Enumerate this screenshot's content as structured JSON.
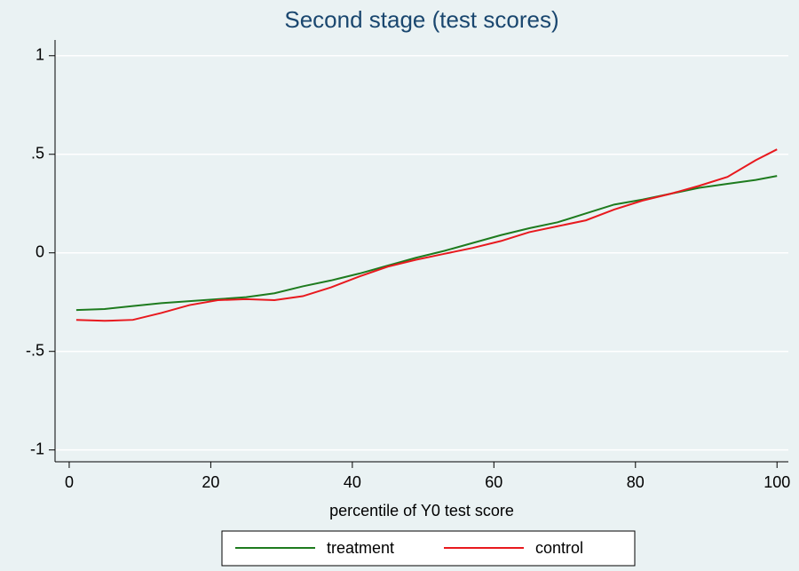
{
  "chart_data": {
    "type": "line",
    "title": "Second stage (test scores)",
    "xlabel": "percentile of Y0 test score",
    "x": [
      1,
      5,
      9,
      13,
      17,
      21,
      25,
      29,
      33,
      37,
      41,
      45,
      49,
      53,
      57,
      61,
      65,
      69,
      73,
      77,
      81,
      85,
      89,
      93,
      97,
      100
    ],
    "series": [
      {
        "name": "treatment",
        "color": "#1e7b1e",
        "values": [
          -0.29,
          -0.285,
          -0.27,
          -0.255,
          -0.245,
          -0.235,
          -0.225,
          -0.205,
          -0.17,
          -0.14,
          -0.105,
          -0.065,
          -0.025,
          0.01,
          0.05,
          0.09,
          0.125,
          0.155,
          0.2,
          0.245,
          0.27,
          0.3,
          0.33,
          0.35,
          0.37,
          0.39
        ]
      },
      {
        "name": "control",
        "color": "#e8191e",
        "values": [
          -0.34,
          -0.345,
          -0.34,
          -0.305,
          -0.265,
          -0.24,
          -0.235,
          -0.24,
          -0.22,
          -0.175,
          -0.12,
          -0.07,
          -0.035,
          -0.005,
          0.025,
          0.06,
          0.105,
          0.135,
          0.165,
          0.22,
          0.265,
          0.3,
          0.34,
          0.385,
          0.47,
          0.525
        ]
      }
    ],
    "xlim": [
      -2,
      101.6
    ],
    "ylim": [
      -1.06,
      1.08
    ],
    "xticks": [
      0,
      20,
      40,
      60,
      80,
      100
    ],
    "yticks": [
      {
        "value": -1,
        "label": "-1"
      },
      {
        "value": -0.5,
        "label": "-.5"
      },
      0,
      {
        "value": 0.5,
        "label": ".5"
      },
      1
    ],
    "grid": true,
    "legend": "bottom"
  }
}
